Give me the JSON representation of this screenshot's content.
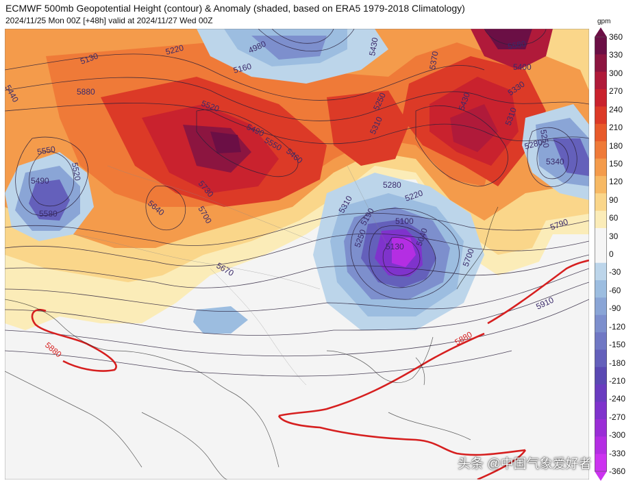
{
  "header": {
    "title": "ECMWF 500mb Geopotential Height (contour) & Anomaly (shaded, based on ERA5 1979-2018 Climatology)",
    "subtitle": "2024/11/25 Mon 00Z [+48h] valid at 2024/11/27 Wed 00Z"
  },
  "colorbar": {
    "unit": "gpm",
    "ticks": [
      "360",
      "330",
      "300",
      "270",
      "240",
      "210",
      "180",
      "150",
      "120",
      "90",
      "60",
      "30",
      "0",
      "-30",
      "-60",
      "-90",
      "-120",
      "-150",
      "-180",
      "-210",
      "-240",
      "-270",
      "-300",
      "-330",
      "-360"
    ],
    "colors": [
      "#6b0f45",
      "#8c1540",
      "#b01a3a",
      "#c9222e",
      "#dc3a27",
      "#e85a2a",
      "#ef7a38",
      "#f49b4b",
      "#f7b964",
      "#fad68a",
      "#fbecb8",
      "#f5f5f5",
      "#f5f5f5",
      "#bcd5ea",
      "#9cbde0",
      "#8aa5d6",
      "#7d8fcd",
      "#7078c4",
      "#6460bb",
      "#5a49b3",
      "#6a3cc0",
      "#7f33cc",
      "#9a2ed6",
      "#b42ee3",
      "#cc33f0"
    ]
  },
  "contour_labels": [
    "5220",
    "5130",
    "4980",
    "5430",
    "5160",
    "5370",
    "5580",
    "5440",
    "5880",
    "5520",
    "5400",
    "5490",
    "5460",
    "5250",
    "5550",
    "5310",
    "5430",
    "5330",
    "5310",
    "5250",
    "5550",
    "5520",
    "5490",
    "5280",
    "5340",
    "5580",
    "5730",
    "5640",
    "5280",
    "5700",
    "5310",
    "5220",
    "5190",
    "5100",
    "5790",
    "5130",
    "5040",
    "5250",
    "5670",
    "5700",
    "5910",
    "5880",
    "5880"
  ],
  "watermark": "头条 @中国气象爱好者"
}
